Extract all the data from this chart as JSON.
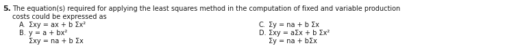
{
  "question_number": "5.",
  "question_text": "The equation(s) required for applying the least squares method in the computation of fixed and variable production",
  "question_text2": "costs could be expressed as",
  "opt_A_label": "A.",
  "opt_A_line1": "Σxy = ax + b Σx²",
  "opt_B_label": "B.",
  "opt_B_line1": "y = a + bx²",
  "opt_B_line2": "Σxy = na + b Σx",
  "opt_C_label": "C.",
  "opt_C_line1": "Σy = na + b Σx",
  "opt_D_label": "D.",
  "opt_D_line1": "Σxy = aΣx + b Σx²",
  "opt_D_line2": "Σy = na + bΣx",
  "bg_color": "#ffffff",
  "text_color": "#1a1a1a",
  "font_size": 7.0,
  "bold_font_size": 8.0,
  "figwidth": 7.4,
  "figheight": 0.8,
  "dpi": 100
}
